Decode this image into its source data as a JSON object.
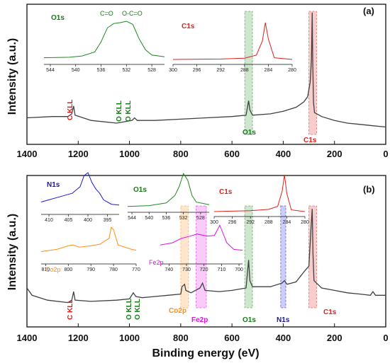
{
  "colors": {
    "survey": "#404040",
    "red": "#e0201c",
    "green": "#1f8a1f",
    "blue": "#1a1ad0",
    "orange": "#ff8c1a",
    "magenta": "#e010e0",
    "darkgreen": "#1a7a1a",
    "navy": "#1a1aa0"
  },
  "chart_data": [
    {
      "id": "a",
      "type": "line",
      "panel_label": "(a)",
      "ylabel": "Intensity (a.u.)",
      "xlabel": "",
      "xlim": [
        1400,
        0
      ],
      "x_ticks": [
        1400,
        1200,
        1000,
        800,
        600,
        400,
        200,
        0
      ],
      "survey_points": [
        [
          1400,
          0.18
        ],
        [
          1300,
          0.19
        ],
        [
          1240,
          0.19
        ],
        [
          1225,
          0.21
        ],
        [
          1218,
          0.27
        ],
        [
          1212,
          0.2
        ],
        [
          1150,
          0.16
        ],
        [
          1050,
          0.14
        ],
        [
          990,
          0.16
        ],
        [
          980,
          0.18
        ],
        [
          970,
          0.16
        ],
        [
          900,
          0.16
        ],
        [
          800,
          0.17
        ],
        [
          700,
          0.18
        ],
        [
          600,
          0.19
        ],
        [
          545,
          0.2
        ],
        [
          535,
          0.31
        ],
        [
          530,
          0.24
        ],
        [
          520,
          0.2
        ],
        [
          450,
          0.21
        ],
        [
          400,
          0.23
        ],
        [
          350,
          0.26
        ],
        [
          320,
          0.3
        ],
        [
          305,
          0.34
        ],
        [
          295,
          0.45
        ],
        [
          290,
          0.62
        ],
        [
          287,
          0.98
        ],
        [
          285,
          0.62
        ],
        [
          282,
          0.3
        ],
        [
          278,
          0.22
        ],
        [
          250,
          0.19
        ],
        [
          200,
          0.16
        ],
        [
          150,
          0.14
        ],
        [
          100,
          0.13
        ],
        [
          50,
          0.12
        ],
        [
          0,
          0.11
        ]
      ],
      "highlights": [
        {
          "from": 550,
          "to": 520,
          "color": "#1f8a1f"
        },
        {
          "from": 300,
          "to": 270,
          "color": "#e0201c"
        }
      ],
      "annotations": [
        {
          "text": "C KLL",
          "color": "#e0201c",
          "vertical": true
        },
        {
          "text": "O KLL",
          "color": "#1a7a1a",
          "vertical": true
        },
        {
          "text": "O KLL",
          "color": "#1a7a1a",
          "vertical": true
        },
        {
          "text": "O1s",
          "color": "#1a7a1a",
          "vertical": false
        },
        {
          "text": "C1s",
          "color": "#e0201c",
          "vertical": false
        }
      ],
      "insets": [
        {
          "label": "O1s",
          "color": "#1f8a1f",
          "label_color": "#1a7a1a",
          "xlim": [
            545,
            526
          ],
          "x_ticks": [
            544,
            540,
            536,
            532,
            528
          ],
          "extra_labels": [
            "C=O",
            "O-C=O"
          ],
          "points": [
            [
              545,
              0.12
            ],
            [
              541,
              0.13
            ],
            [
              539,
              0.16
            ],
            [
              537,
              0.25
            ],
            [
              536,
              0.48
            ],
            [
              535,
              0.8
            ],
            [
              534,
              0.9
            ],
            [
              533,
              0.92
            ],
            [
              532,
              0.95
            ],
            [
              531,
              0.88
            ],
            [
              530,
              0.55
            ],
            [
              529,
              0.3
            ],
            [
              528,
              0.18
            ],
            [
              526,
              0.14
            ]
          ]
        },
        {
          "label": "C1s",
          "color": "#e0201c",
          "label_color": "#e0201c",
          "xlim": [
            300,
            280
          ],
          "x_ticks": [
            300,
            296,
            292,
            288,
            284,
            280
          ],
          "extra_labels": [],
          "points": [
            [
              300,
              0.08
            ],
            [
              292,
              0.09
            ],
            [
              288,
              0.11
            ],
            [
              286,
              0.18
            ],
            [
              285,
              0.5
            ],
            [
              284.5,
              0.92
            ],
            [
              284,
              0.55
            ],
            [
              283,
              0.12
            ],
            [
              280,
              0.08
            ]
          ]
        }
      ]
    },
    {
      "id": "b",
      "type": "line",
      "panel_label": "(b)",
      "ylabel": "Intensity (a.u.)",
      "xlabel": "Binding energy (eV)",
      "xlim": [
        1400,
        0
      ],
      "x_ticks": [
        1400,
        1200,
        1000,
        800,
        600,
        400,
        200,
        0
      ],
      "survey_points": [
        [
          1400,
          0.32
        ],
        [
          1380,
          0.26
        ],
        [
          1320,
          0.22
        ],
        [
          1240,
          0.2
        ],
        [
          1225,
          0.22
        ],
        [
          1218,
          0.29
        ],
        [
          1212,
          0.22
        ],
        [
          1150,
          0.21
        ],
        [
          1050,
          0.22
        ],
        [
          1000,
          0.23
        ],
        [
          985,
          0.28
        ],
        [
          975,
          0.25
        ],
        [
          950,
          0.24
        ],
        [
          900,
          0.25
        ],
        [
          850,
          0.26
        ],
        [
          800,
          0.27
        ],
        [
          795,
          0.33
        ],
        [
          785,
          0.35
        ],
        [
          780,
          0.3
        ],
        [
          760,
          0.28
        ],
        [
          725,
          0.32
        ],
        [
          715,
          0.36
        ],
        [
          705,
          0.3
        ],
        [
          650,
          0.29
        ],
        [
          600,
          0.3
        ],
        [
          545,
          0.32
        ],
        [
          535,
          0.55
        ],
        [
          530,
          0.38
        ],
        [
          520,
          0.33
        ],
        [
          450,
          0.33
        ],
        [
          405,
          0.36
        ],
        [
          395,
          0.38
        ],
        [
          385,
          0.35
        ],
        [
          350,
          0.37
        ],
        [
          320,
          0.45
        ],
        [
          300,
          0.5
        ],
        [
          292,
          0.8
        ],
        [
          287,
          0.97
        ],
        [
          284,
          0.6
        ],
        [
          280,
          0.38
        ],
        [
          250,
          0.32
        ],
        [
          200,
          0.3
        ],
        [
          150,
          0.28
        ],
        [
          100,
          0.27
        ],
        [
          60,
          0.26
        ],
        [
          50,
          0.29
        ],
        [
          40,
          0.26
        ],
        [
          0,
          0.26
        ]
      ],
      "highlights": [
        {
          "from": 800,
          "to": 770,
          "color": "#ff8c1a"
        },
        {
          "from": 740,
          "to": 700,
          "color": "#e010e0"
        },
        {
          "from": 550,
          "to": 520,
          "color": "#1f8a1f"
        },
        {
          "from": 410,
          "to": 390,
          "color": "#1a1ad0"
        },
        {
          "from": 300,
          "to": 270,
          "color": "#e0201c"
        }
      ],
      "annotations": [
        {
          "text": "C KLL",
          "color": "#e0201c",
          "vertical": true
        },
        {
          "text": "O KLL",
          "color": "#1a7a1a",
          "vertical": true
        },
        {
          "text": "O KLL",
          "color": "#1a7a1a",
          "vertical": true
        },
        {
          "text": "Co2p",
          "color": "#ff8c1a",
          "vertical": false
        },
        {
          "text": "Fe2p",
          "color": "#e010e0",
          "vertical": false
        },
        {
          "text": "O1s",
          "color": "#1a7a1a",
          "vertical": false
        },
        {
          "text": "N1s",
          "color": "#1a1aa0",
          "vertical": false
        },
        {
          "text": "C1s",
          "color": "#e0201c",
          "vertical": false
        }
      ],
      "insets": [
        {
          "label": "N1s",
          "color": "#1a1ad0",
          "label_color": "#1a1aa0",
          "xlim": [
            412,
            392
          ],
          "x_ticks": [
            410,
            405,
            400,
            395
          ],
          "extra_labels": [],
          "points": [
            [
              412,
              0.25
            ],
            [
              410,
              0.3
            ],
            [
              408,
              0.35
            ],
            [
              406,
              0.4
            ],
            [
              404,
              0.45
            ],
            [
              402,
              0.6
            ],
            [
              401,
              0.85
            ],
            [
              400,
              0.92
            ],
            [
              399,
              0.7
            ],
            [
              398,
              0.55
            ],
            [
              397,
              0.45
            ],
            [
              396,
              0.3
            ],
            [
              394,
              0.2
            ],
            [
              392,
              0.18
            ]
          ]
        },
        {
          "label": "O1s",
          "color": "#1f8a1f",
          "label_color": "#1a7a1a",
          "xlim": [
            545,
            526
          ],
          "x_ticks": [
            544,
            540,
            536,
            532,
            528
          ],
          "extra_labels": [],
          "points": [
            [
              545,
              0.1
            ],
            [
              540,
              0.12
            ],
            [
              536,
              0.18
            ],
            [
              534,
              0.35
            ],
            [
              533,
              0.55
            ],
            [
              532,
              0.85
            ],
            [
              531,
              0.7
            ],
            [
              530,
              0.35
            ],
            [
              529,
              0.2
            ],
            [
              526,
              0.14
            ]
          ]
        },
        {
          "label": "C1s",
          "color": "#e0201c",
          "label_color": "#e0201c",
          "xlim": [
            300,
            280
          ],
          "x_ticks": [
            300,
            296,
            292,
            288,
            284,
            280
          ],
          "extra_labels": [],
          "points": [
            [
              300,
              0.08
            ],
            [
              292,
              0.1
            ],
            [
              288,
              0.13
            ],
            [
              286,
              0.2
            ],
            [
              285,
              0.55
            ],
            [
              284.5,
              0.92
            ],
            [
              284,
              0.5
            ],
            [
              283,
              0.12
            ],
            [
              280,
              0.08
            ]
          ]
        },
        {
          "label": "Co2p",
          "color": "#ff8c1a",
          "label_color": "#ff8c1a",
          "xlim": [
            812,
            770
          ],
          "x_ticks": [
            810,
            800,
            790,
            780,
            770
          ],
          "extra_labels": [],
          "points": [
            [
              812,
              0.25
            ],
            [
              805,
              0.3
            ],
            [
              800,
              0.38
            ],
            [
              798,
              0.4
            ],
            [
              795,
              0.35
            ],
            [
              790,
              0.38
            ],
            [
              786,
              0.42
            ],
            [
              782,
              0.55
            ],
            [
              781,
              0.8
            ],
            [
              780,
              0.75
            ],
            [
              778,
              0.4
            ],
            [
              772,
              0.3
            ],
            [
              770,
              0.28
            ]
          ]
        },
        {
          "label": "Fe2p",
          "color": "#e010e0",
          "label_color": "#e010e0",
          "xlim": [
            745,
            698
          ],
          "x_ticks": [
            740,
            730,
            720,
            710,
            700
          ],
          "extra_labels": [],
          "points": [
            [
              745,
              0.4
            ],
            [
              738,
              0.45
            ],
            [
              733,
              0.55
            ],
            [
              728,
              0.6
            ],
            [
              724,
              0.65
            ],
            [
              718,
              0.6
            ],
            [
              714,
              0.62
            ],
            [
              711,
              0.85
            ],
            [
              710,
              0.75
            ],
            [
              707,
              0.45
            ],
            [
              703,
              0.3
            ],
            [
              698,
              0.28
            ]
          ]
        }
      ]
    }
  ]
}
